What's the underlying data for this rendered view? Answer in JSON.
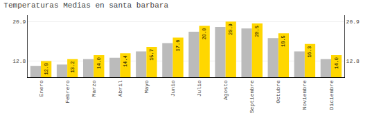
{
  "chart_data": {
    "type": "bar",
    "title": "Temperaturas Medias en santa barbara",
    "categories": [
      "Enero",
      "Febrero",
      "Marzo",
      "Abril",
      "Mayo",
      "Junio",
      "Julio",
      "Agosto",
      "Septiembre",
      "Octubre",
      "Noviembre",
      "Diciembre"
    ],
    "series": [
      {
        "color": "#BBBBBB",
        "values": [
          11.8,
          12.1,
          13.2,
          13.5,
          14.8,
          16.5,
          18.8,
          19.8,
          19.5,
          17.5,
          14.8,
          13.2
        ]
      },
      {
        "color": "#FFD700",
        "values": [
          12.8,
          13.2,
          14.0,
          14.4,
          15.7,
          17.6,
          20.0,
          20.9,
          20.5,
          18.5,
          16.3,
          14.0
        ],
        "data_labels": true,
        "value_labels": [
          "12.8",
          "13.2",
          "14.0",
          "14.4",
          "15.7",
          "17.6",
          "20.0",
          "20.9",
          "20.5",
          "18.5",
          "16.3",
          "14.0"
        ]
      }
    ],
    "ylim": [
      9.5,
      22.2
    ],
    "yticks": [
      12.8,
      20.9
    ],
    "y2lim": [
      9.5,
      22.2
    ],
    "y2ticks": [
      12.8,
      20.9
    ],
    "grid": true
  }
}
